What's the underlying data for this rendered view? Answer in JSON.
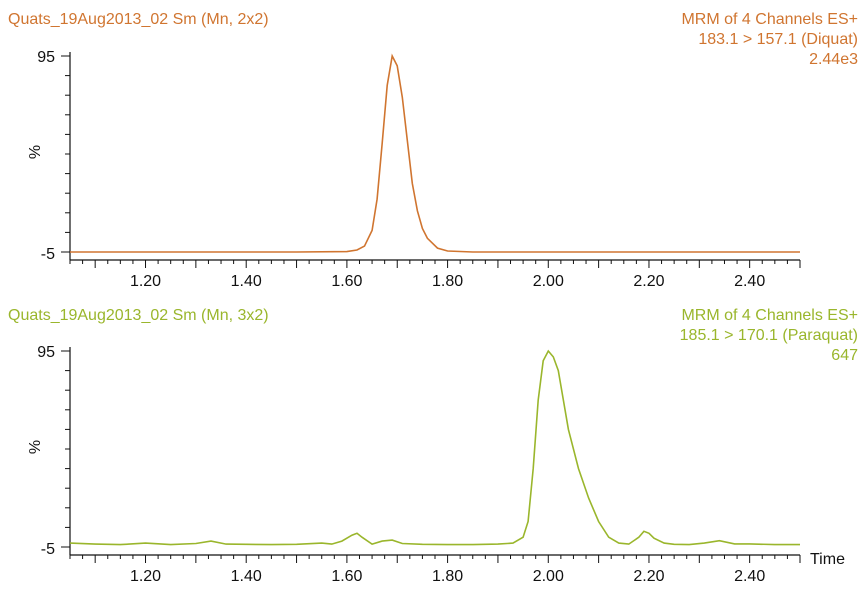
{
  "chart_data": [
    {
      "type": "line",
      "title": "Quats_19Aug2013_02 Sm (Mn, 2x2)",
      "info": [
        "MRM of 4 Channels ES+",
        "183.1 > 157.1 (Diquat)",
        "2.44e3"
      ],
      "ylabel": "%",
      "xlabel": "",
      "xlim": [
        1.05,
        2.5
      ],
      "ylim": [
        -5,
        95
      ],
      "yticks": [
        "95",
        "-5"
      ],
      "xtick_labels": [
        "1.20",
        "1.40",
        "1.60",
        "1.80",
        "2.00",
        "2.20",
        "2.40"
      ],
      "color": "#D07530",
      "series": [
        {
          "x": [
            1.05,
            1.5,
            1.6,
            1.62,
            1.635,
            1.65,
            1.66,
            1.67,
            1.68,
            1.69,
            1.7,
            1.71,
            1.72,
            1.73,
            1.74,
            1.75,
            1.76,
            1.78,
            1.8,
            1.85,
            2.0,
            2.5
          ],
          "y": [
            -5,
            -5,
            -4.8,
            -4.0,
            -2.0,
            6,
            22,
            50,
            80,
            95,
            90,
            74,
            52,
            30,
            16,
            7,
            2,
            -3,
            -4.5,
            -5,
            -5,
            -5
          ]
        }
      ]
    },
    {
      "type": "line",
      "title": "Quats_19Aug2013_02 Sm (Mn, 3x2)",
      "info": [
        "MRM of 4 Channels ES+",
        "185.1 > 170.1 (Paraquat)",
        "647"
      ],
      "ylabel": "%",
      "xlabel": "Time",
      "xlim": [
        1.05,
        2.5
      ],
      "ylim": [
        -5,
        95
      ],
      "yticks": [
        "95",
        "-5"
      ],
      "xtick_labels": [
        "1.20",
        "1.40",
        "1.60",
        "1.80",
        "2.00",
        "2.20",
        "2.40"
      ],
      "color": "#9AB62C",
      "series": [
        {
          "x": [
            1.05,
            1.1,
            1.15,
            1.2,
            1.25,
            1.3,
            1.33,
            1.36,
            1.4,
            1.45,
            1.5,
            1.55,
            1.57,
            1.59,
            1.61,
            1.62,
            1.63,
            1.65,
            1.67,
            1.69,
            1.71,
            1.75,
            1.8,
            1.85,
            1.9,
            1.93,
            1.95,
            1.96,
            1.97,
            1.98,
            1.99,
            2.0,
            2.01,
            2.02,
            2.04,
            2.06,
            2.08,
            2.1,
            2.12,
            2.14,
            2.16,
            2.18,
            2.19,
            2.2,
            2.21,
            2.23,
            2.25,
            2.28,
            2.31,
            2.34,
            2.37,
            2.4,
            2.45,
            2.5
          ],
          "y": [
            -3,
            -3.5,
            -3.8,
            -3,
            -3.8,
            -3.2,
            -2,
            -3.5,
            -3.6,
            -3.8,
            -3.6,
            -3,
            -3.5,
            -2,
            1,
            2,
            0,
            -3.5,
            -2,
            -1.5,
            -3.2,
            -3.6,
            -3.8,
            -3.8,
            -3.5,
            -3,
            0,
            8,
            35,
            70,
            90,
            95,
            92,
            85,
            55,
            35,
            20,
            8,
            0,
            -3,
            -3.5,
            0,
            3,
            2,
            -0.5,
            -3,
            -3.6,
            -3.8,
            -3,
            -1.8,
            -3.4,
            -3.4,
            -3.8,
            -3.8
          ]
        }
      ]
    }
  ]
}
